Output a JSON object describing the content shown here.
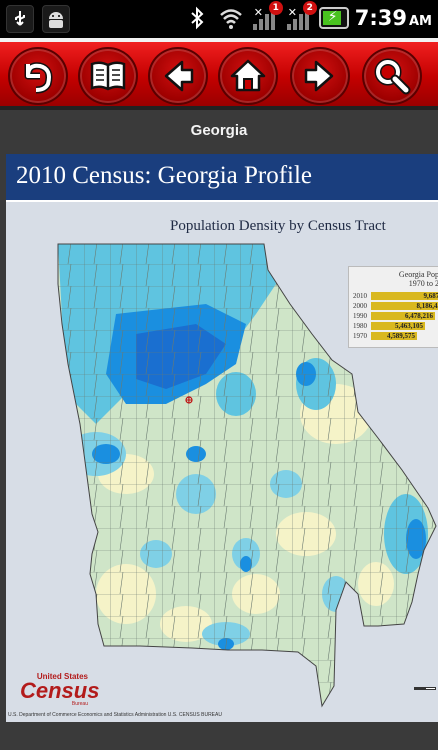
{
  "status_bar": {
    "time": "7:39",
    "ampm": "AM",
    "icons": [
      "usb-icon",
      "android-debug-icon",
      "bluetooth-icon",
      "wifi-icon",
      "signal-icon",
      "signal-icon",
      "battery-charging-icon"
    ],
    "signal_badges": [
      "1",
      "2"
    ]
  },
  "toolbar": {
    "buttons": [
      {
        "name": "back-undo-button",
        "icon": "undo-arrow-icon"
      },
      {
        "name": "book-button",
        "icon": "book-icon"
      },
      {
        "name": "previous-button",
        "icon": "arrow-left-icon"
      },
      {
        "name": "home-button",
        "icon": "home-icon"
      },
      {
        "name": "next-button",
        "icon": "arrow-right-icon"
      },
      {
        "name": "search-button",
        "icon": "search-icon"
      }
    ]
  },
  "page": {
    "title": "Georgia"
  },
  "map": {
    "banner": "2010 Census: Georgia Profile",
    "title": "Population Density by Census Tract",
    "legend": {
      "title": "Georgia Popu",
      "subtitle": "1970 to 20",
      "rows": [
        {
          "year": "2010",
          "value": "9,687,"
        },
        {
          "year": "2000",
          "value": "8,186,45"
        },
        {
          "year": "1990",
          "value": "6,478,216"
        },
        {
          "year": "1980",
          "value": "5,463,105"
        },
        {
          "year": "1970",
          "value": "4,589,575"
        }
      ]
    },
    "logo": {
      "line1": "United States",
      "line2": "Census",
      "line3": "Bureau"
    },
    "footer": "U.S. Department of Commerce  Economics and Statistics Administration  U.S. CENSUS BUREAU"
  },
  "colors": {
    "toolbar_red": "#c40000",
    "banner_blue": "#1a3e7e",
    "legend_gold": "#d9b820",
    "map_light": "#cfe5c8",
    "map_cream": "#f5f3c8",
    "map_cyan": "#5fc4e0",
    "map_blue": "#1a8fe0"
  }
}
